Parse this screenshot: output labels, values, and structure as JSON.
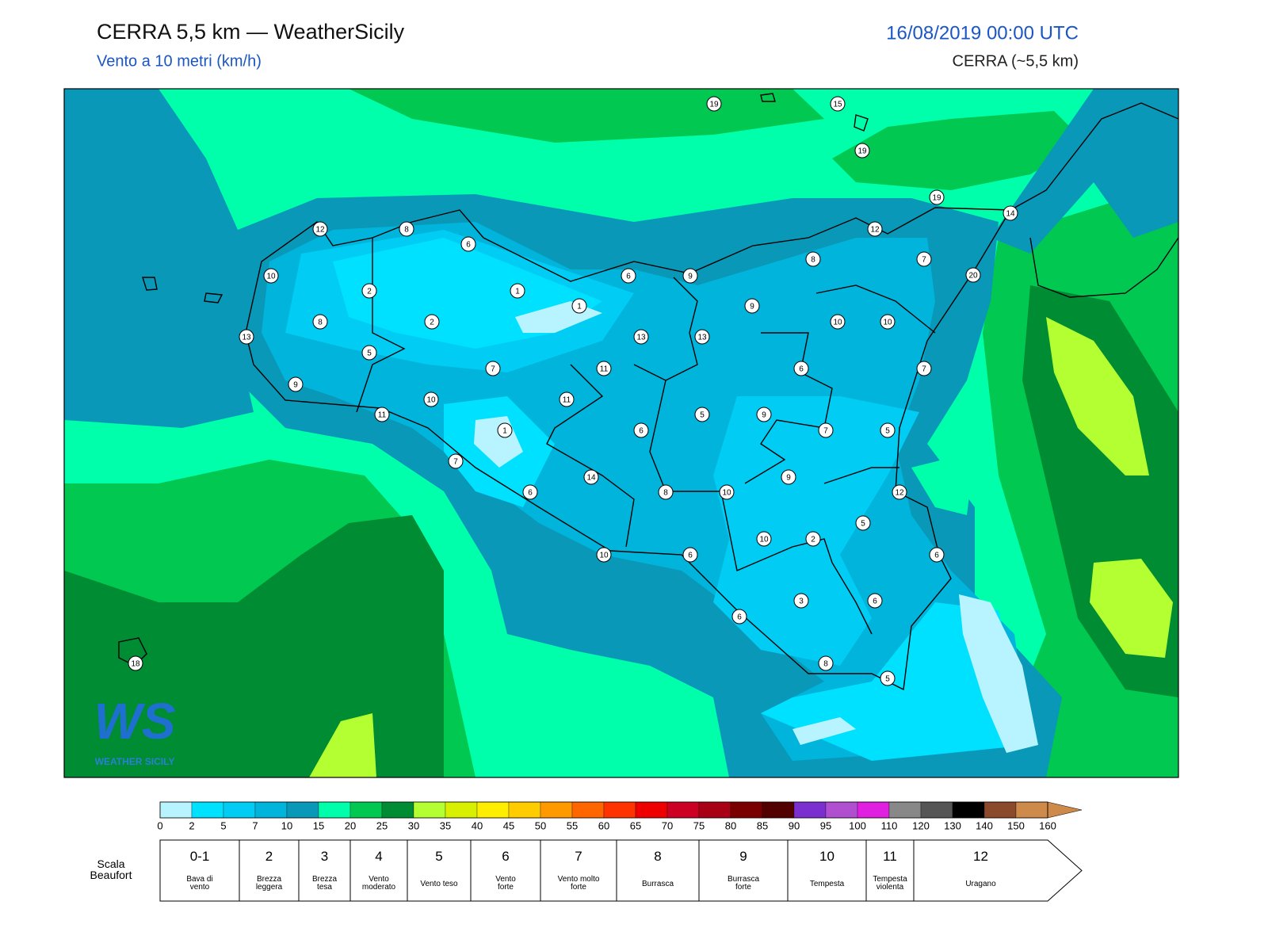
{
  "header": {
    "title": "CERRA 5,5 km — WeatherSicily",
    "subtitle": "Vento a 10 metri (km/h)",
    "datetime": "16/08/2019 00:00 UTC",
    "model": "CERRA (~5,5 km)"
  },
  "map": {
    "stations": [
      19,
      15,
      19,
      19,
      14,
      12,
      8,
      6,
      12,
      8,
      7,
      20,
      10,
      6,
      9,
      2,
      1,
      1,
      9,
      8,
      2,
      10,
      10,
      13,
      13,
      13,
      5,
      7,
      11,
      6,
      7,
      9,
      10,
      11,
      11,
      5,
      9,
      1,
      6,
      7,
      5,
      7,
      14,
      9,
      6,
      8,
      10,
      12,
      5,
      10,
      2,
      6,
      10,
      6,
      3,
      6,
      6,
      18,
      8,
      5
    ]
  },
  "logo": {
    "mark": "WS",
    "name": "WEATHER SICILY"
  },
  "colorbar": {
    "ticks": [
      0,
      2,
      5,
      7,
      10,
      15,
      20,
      25,
      30,
      35,
      40,
      45,
      50,
      55,
      60,
      65,
      70,
      75,
      80,
      85,
      90,
      95,
      100,
      110,
      120,
      130,
      140,
      150,
      160
    ],
    "colors": [
      "#b8f4ff",
      "#00e0ff",
      "#00ccf4",
      "#00b4dc",
      "#0a98b8",
      "#00ffaa",
      "#00c850",
      "#008c32",
      "#b4ff32",
      "#d8f000",
      "#ffee00",
      "#ffcc00",
      "#ff9900",
      "#ff6600",
      "#ff3300",
      "#ee0000",
      "#cc0022",
      "#a80014",
      "#7a0000",
      "#520000",
      "#7b2fcf",
      "#b050d0",
      "#e020e0",
      "#888888",
      "#555555",
      "#000000",
      "#8b4a2b",
      "#cd8a4a"
    ]
  },
  "beaufort": {
    "label": "Scala\nBeaufort",
    "classes": [
      {
        "force": "0-1",
        "description": "Bava di\nvento"
      },
      {
        "force": "2",
        "description": "Brezza\nleggera"
      },
      {
        "force": "3",
        "description": "Brezza\ntesa"
      },
      {
        "force": "4",
        "description": "Vento\nmoderato"
      },
      {
        "force": "5",
        "description": "Vento teso"
      },
      {
        "force": "6",
        "description": "Vento\nforte"
      },
      {
        "force": "7",
        "description": "Vento molto\nforte"
      },
      {
        "force": "8",
        "description": "Burrasca"
      },
      {
        "force": "9",
        "description": "Burrasca\nforte"
      },
      {
        "force": "10",
        "description": "Tempesta"
      },
      {
        "force": "11",
        "description": "Tempesta\nviolenta"
      },
      {
        "force": "12",
        "description": "Uragano"
      }
    ]
  }
}
